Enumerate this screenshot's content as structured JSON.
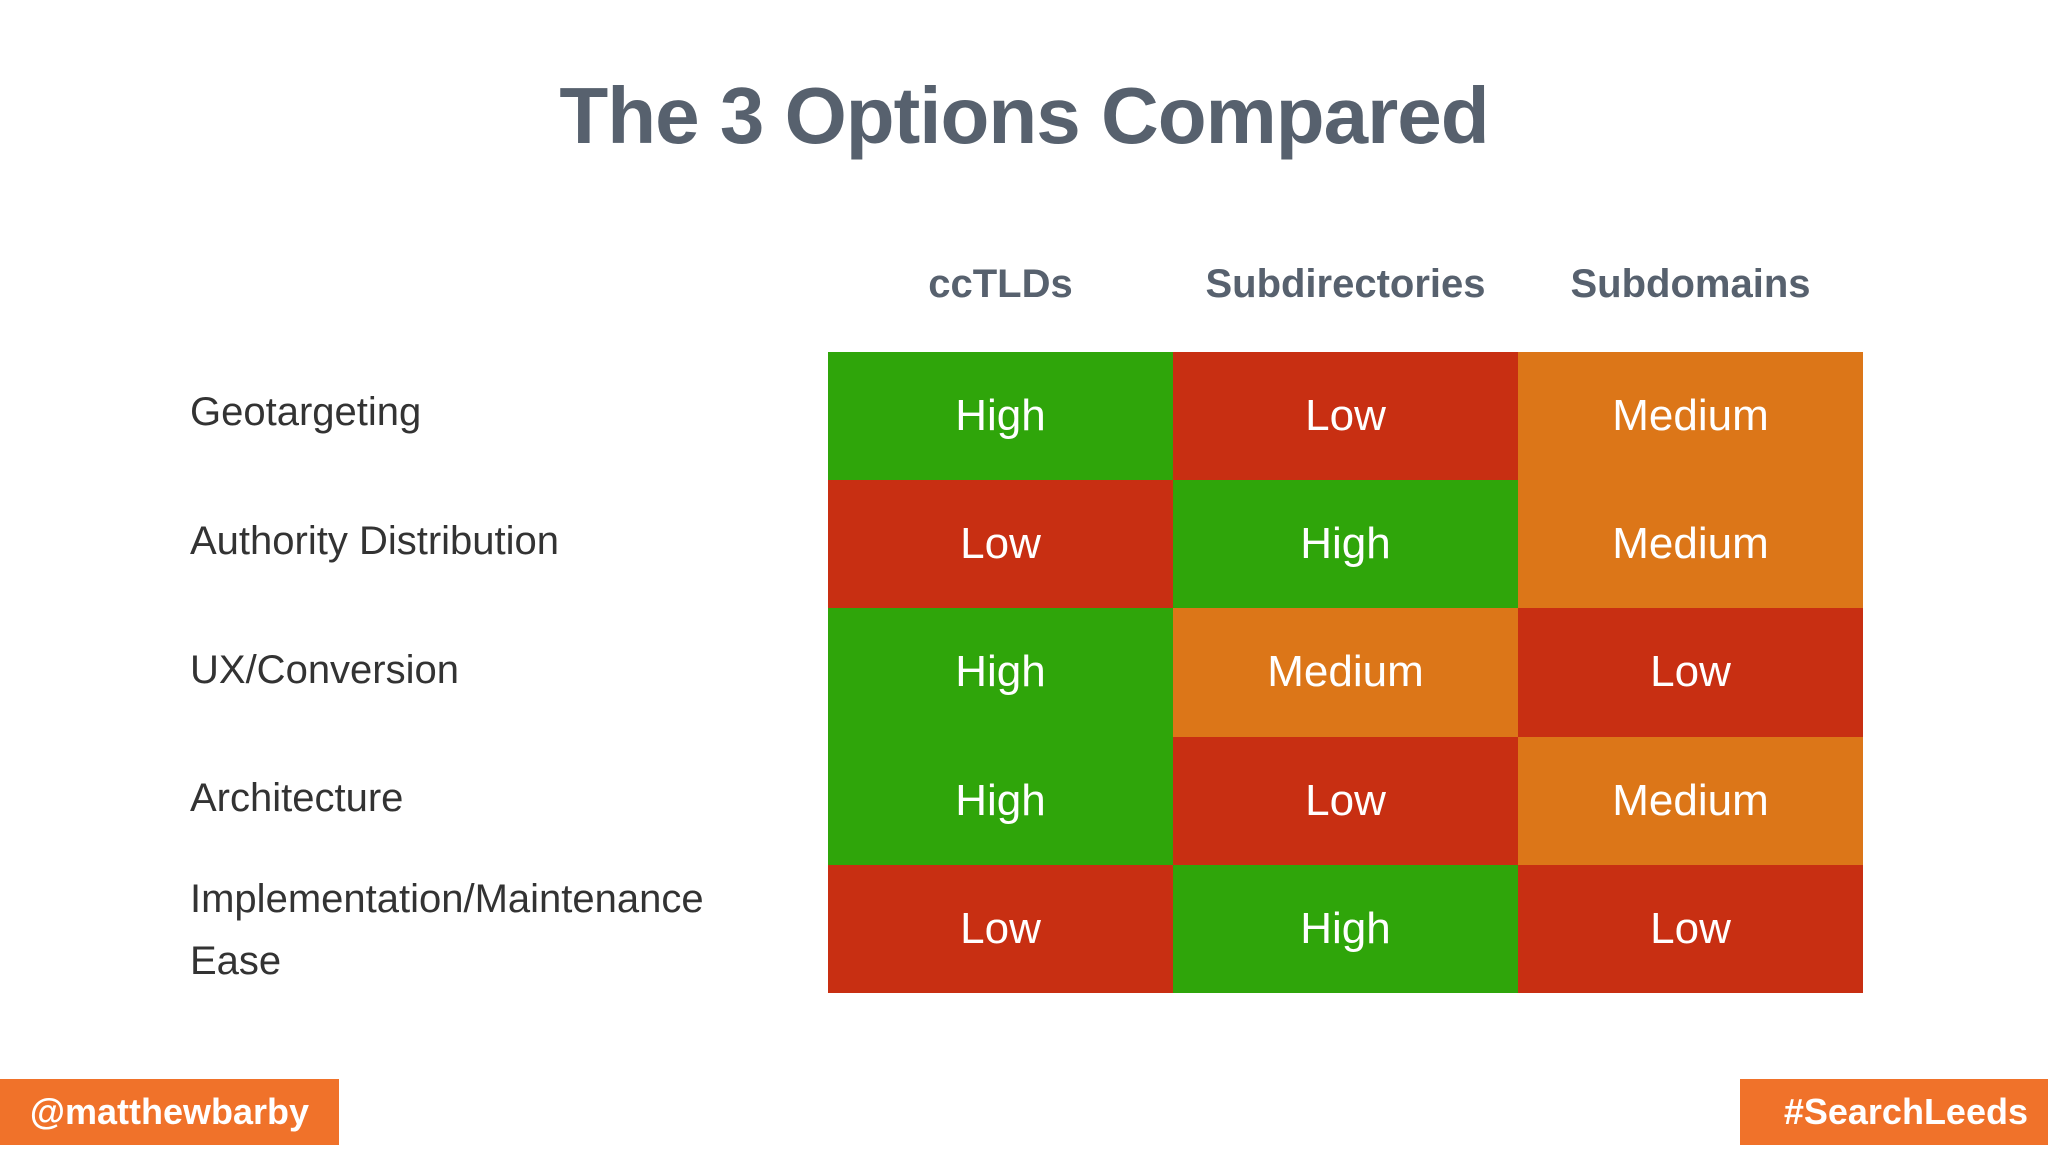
{
  "title": "The 3 Options Compared",
  "table": {
    "columns": [
      "ccTLDs",
      "Subdirectories",
      "Subdomains"
    ],
    "rows": [
      {
        "label": "Geotargeting",
        "cells": [
          {
            "text": "High",
            "level": "high"
          },
          {
            "text": "Low",
            "level": "low"
          },
          {
            "text": "Medium",
            "level": "medium"
          }
        ]
      },
      {
        "label": "Authority Distribution",
        "cells": [
          {
            "text": "Low",
            "level": "low"
          },
          {
            "text": "High",
            "level": "high"
          },
          {
            "text": "Medium",
            "level": "medium"
          }
        ]
      },
      {
        "label": "UX/Conversion",
        "cells": [
          {
            "text": "High",
            "level": "high"
          },
          {
            "text": "Medium",
            "level": "medium"
          },
          {
            "text": "Low",
            "level": "low"
          }
        ]
      },
      {
        "label": "Architecture",
        "cells": [
          {
            "text": "High",
            "level": "high"
          },
          {
            "text": "Low",
            "level": "low"
          },
          {
            "text": "Medium",
            "level": "medium"
          }
        ]
      },
      {
        "label": "Implementation/Maintenance Ease",
        "cells": [
          {
            "text": "Low",
            "level": "low"
          },
          {
            "text": "High",
            "level": "high"
          },
          {
            "text": "Low",
            "level": "low"
          }
        ]
      }
    ]
  },
  "footer": {
    "left_badge": "@matthewbarby",
    "right_badge": "#SearchLeeds"
  },
  "colors": {
    "high": "#2FA50A",
    "medium": "#DC7618",
    "low": "#C82F12",
    "badge_background": "#F0722A",
    "heading_text": "#57616E",
    "label_text": "#333333",
    "cell_text": "#FFFFFF"
  },
  "chart_data": {
    "type": "table",
    "title": "The 3 Options Compared",
    "columns": [
      "ccTLDs",
      "Subdirectories",
      "Subdomains"
    ],
    "rows": [
      "Geotargeting",
      "Authority Distribution",
      "UX/Conversion",
      "Architecture",
      "Implementation/Maintenance Ease"
    ],
    "values": [
      [
        "High",
        "Low",
        "Medium"
      ],
      [
        "Low",
        "High",
        "Medium"
      ],
      [
        "High",
        "Medium",
        "Low"
      ],
      [
        "High",
        "Low",
        "Medium"
      ],
      [
        "Low",
        "High",
        "Low"
      ]
    ],
    "value_color_encoding": {
      "High": "green #2FA50A",
      "Medium": "orange #DC7618",
      "Low": "red #C82F12"
    },
    "legend_position": "none",
    "grid": false
  }
}
